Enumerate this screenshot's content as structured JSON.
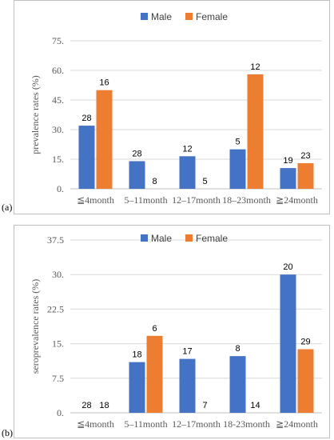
{
  "colors": {
    "male": "#4472C4",
    "female": "#ED7D31",
    "grid": "#d9d9d9",
    "axis": "#bfbfbf"
  },
  "chart_data": [
    {
      "type": "bar",
      "panel_label": "(a)",
      "ylabel": "prevalence rates (%)",
      "ylim": [
        0,
        75
      ],
      "yticks": [
        "0.",
        "15.",
        "30.",
        "45.",
        "60.",
        "75."
      ],
      "categories": [
        "≦4month",
        "5–11month",
        "12–17month",
        "18–23month",
        "≧24month"
      ],
      "legend": "top",
      "grid": true,
      "series": [
        {
          "name": "Male",
          "values": [
            32,
            14,
            16.5,
            20,
            10.5
          ],
          "labels": [
            "28",
            "28",
            "12",
            "5",
            "19"
          ]
        },
        {
          "name": "Female",
          "values": [
            50,
            0,
            0,
            58,
            13
          ],
          "labels": [
            "16",
            "8",
            "5",
            "12",
            "23"
          ]
        }
      ]
    },
    {
      "type": "bar",
      "panel_label": "(b)",
      "ylabel": "seroprevalence rates (%)",
      "ylim": [
        0,
        37.5
      ],
      "yticks": [
        "0.",
        "7.5",
        "15.",
        "22.5",
        "30.",
        "37.5"
      ],
      "categories": [
        "≦4month",
        "5–11month",
        "12–17month",
        "18-23month",
        "≧24month"
      ],
      "legend": "top",
      "grid": true,
      "series": [
        {
          "name": "Male",
          "values": [
            0,
            11,
            11.7,
            12.3,
            30
          ],
          "labels": [
            "28",
            "18",
            "17",
            "8",
            "20"
          ]
        },
        {
          "name": "Female",
          "values": [
            0,
            16.7,
            0,
            0,
            13.8
          ],
          "labels": [
            "18",
            "6",
            "7",
            "14",
            "29"
          ]
        }
      ]
    }
  ]
}
